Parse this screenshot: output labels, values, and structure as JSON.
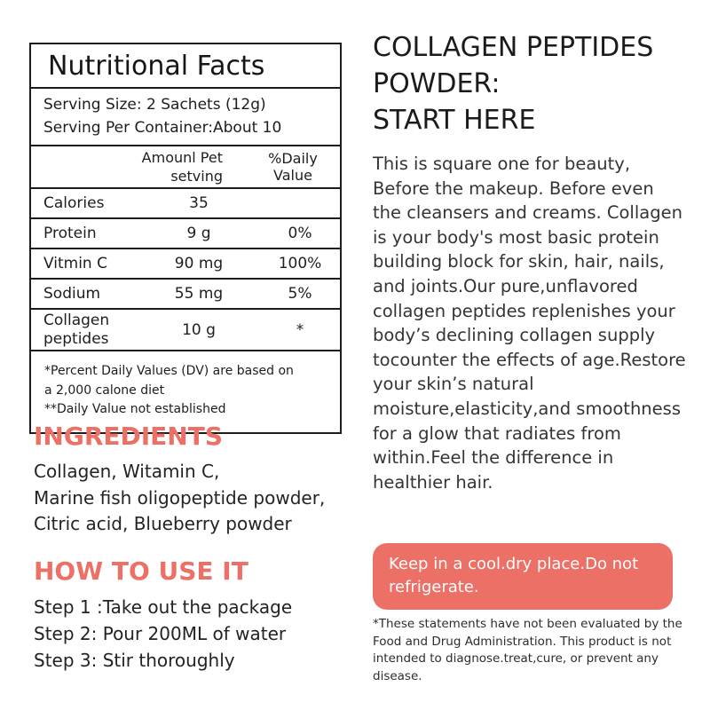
{
  "accent_color": "#ED7066",
  "nutrition_table": {
    "title": "Nutritional Facts",
    "serving_lines": [
      "Serving Size: 2 Sachets (12g)",
      "Serving Per Container:About 10"
    ],
    "header": {
      "amount_line1": "Amounl Pet",
      "amount_line2": "setving",
      "daily_value": "%Daily Value"
    },
    "rows": [
      {
        "label": "Calories",
        "amount": "35",
        "dv": ""
      },
      {
        "label": "Protein",
        "amount": "9 g",
        "dv": "0%"
      },
      {
        "label": "Vitmin C",
        "amount": "90 mg",
        "dv": "100%"
      },
      {
        "label": "Sodium",
        "amount": "55 mg",
        "dv": "5%"
      },
      {
        "label": "Collagen peptides",
        "amount": "10 g",
        "dv": "*"
      }
    ],
    "footnotes": [
      "*Percent Daily Values (DV) are based on",
      "a 2,000 calone diet",
      "**Daily Value not established"
    ]
  },
  "ingredients": {
    "heading": "INGREDIENTS",
    "lines": [
      "Collagen, Witamin C,",
      "Marine fish oligopeptide powder,",
      "Citric acid, Blueberry powder"
    ]
  },
  "how_to_use": {
    "heading": "HOW TO USE IT",
    "steps": [
      "Step 1 :Take out the package",
      "Step 2: Pour 200ML of water",
      "Step 3: Stir thoroughly"
    ]
  },
  "right": {
    "heading_lines": [
      "COLLAGEN PEPTIDES",
      "POWDER:",
      "START HERE"
    ],
    "body": "This is square one for beauty, Before the makeup. Before even the cleansers and creams. Collagen is your body's most basic protein building block for skin, hair, nails, and joints.Our pure,unflavored collagen peptides replenishes your body’s declining collagen supply tocounter the effects of age.Restore your skin’s natural moisture,elasticity,and smoothness for a glow that radiates from within.Feel the difference in healthier hair.",
    "storage_notice": "Keep in a cool.dry place.Do not refrigerate.",
    "disclaimer": "*These statements have not been evaluated by the Food and Drug Administration. This product is not intended to diagnose.treat,cure, or prevent any disease."
  }
}
